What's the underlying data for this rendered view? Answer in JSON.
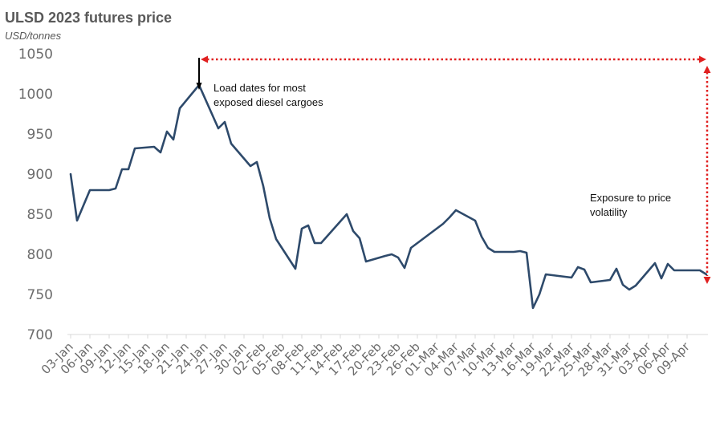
{
  "chart_data": {
    "type": "line",
    "title": "ULSD 2023 futures price",
    "ylabel": "USD/tonnes",
    "ylim": [
      700,
      1050
    ],
    "yticks": [
      700,
      750,
      800,
      850,
      900,
      950,
      1000,
      1050
    ],
    "x_tick_labels": [
      "03-Jan",
      "06-Jan",
      "09-Jan",
      "12-Jan",
      "15-Jan",
      "18-Jan",
      "21-Jan",
      "24-Jan",
      "27-Jan",
      "30-Jan",
      "02-Feb",
      "05-Feb",
      "08-Feb",
      "11-Feb",
      "14-Feb",
      "17-Feb",
      "20-Feb",
      "23-Feb",
      "26-Feb",
      "01-Mar",
      "04-Mar",
      "07-Mar",
      "10-Mar",
      "13-Mar",
      "16-Mar",
      "19-Mar",
      "22-Mar",
      "25-Mar",
      "28-Mar",
      "31-Mar",
      "03-Apr",
      "06-Apr",
      "09-Apr"
    ],
    "series": [
      {
        "color": "#2e4a6b",
        "points": [
          [
            "2023-01-03",
            900
          ],
          [
            "2023-01-04",
            842
          ],
          [
            "2023-01-06",
            880
          ],
          [
            "2023-01-09",
            880
          ],
          [
            "2023-01-10",
            882
          ],
          [
            "2023-01-11",
            906
          ],
          [
            "2023-01-12",
            906
          ],
          [
            "2023-01-13",
            932
          ],
          [
            "2023-01-16",
            934
          ],
          [
            "2023-01-17",
            927
          ],
          [
            "2023-01-18",
            953
          ],
          [
            "2023-01-19",
            943
          ],
          [
            "2023-01-20",
            982
          ],
          [
            "2023-01-23",
            1011
          ],
          [
            "2023-01-26",
            957
          ],
          [
            "2023-01-27",
            965
          ],
          [
            "2023-01-28",
            938
          ],
          [
            "2023-01-31",
            910
          ],
          [
            "2023-02-01",
            915
          ],
          [
            "2023-02-02",
            885
          ],
          [
            "2023-02-03",
            845
          ],
          [
            "2023-02-04",
            819
          ],
          [
            "2023-02-07",
            782
          ],
          [
            "2023-02-08",
            832
          ],
          [
            "2023-02-09",
            836
          ],
          [
            "2023-02-10",
            814
          ],
          [
            "2023-02-11",
            814
          ],
          [
            "2023-02-15",
            850
          ],
          [
            "2023-02-16",
            829
          ],
          [
            "2023-02-17",
            820
          ],
          [
            "2023-02-18",
            791
          ],
          [
            "2023-02-21",
            798
          ],
          [
            "2023-02-22",
            800
          ],
          [
            "2023-02-23",
            796
          ],
          [
            "2023-02-24",
            783
          ],
          [
            "2023-02-25",
            808
          ],
          [
            "2023-03-02",
            838
          ],
          [
            "2023-03-03",
            846
          ],
          [
            "2023-03-04",
            855
          ],
          [
            "2023-03-07",
            842
          ],
          [
            "2023-03-08",
            822
          ],
          [
            "2023-03-09",
            808
          ],
          [
            "2023-03-10",
            803
          ],
          [
            "2023-03-13",
            803
          ],
          [
            "2023-03-14",
            804
          ],
          [
            "2023-03-15",
            802
          ],
          [
            "2023-03-16",
            733
          ],
          [
            "2023-03-17",
            750
          ],
          [
            "2023-03-18",
            775
          ],
          [
            "2023-03-21",
            772
          ],
          [
            "2023-03-22",
            771
          ],
          [
            "2023-03-23",
            784
          ],
          [
            "2023-03-24",
            781
          ],
          [
            "2023-03-25",
            765
          ],
          [
            "2023-03-28",
            768
          ],
          [
            "2023-03-29",
            782
          ],
          [
            "2023-03-30",
            762
          ],
          [
            "2023-03-31",
            756
          ],
          [
            "2023-04-01",
            761
          ],
          [
            "2023-04-04",
            789
          ],
          [
            "2023-04-05",
            770
          ],
          [
            "2023-04-06",
            788
          ],
          [
            "2023-04-07",
            780
          ],
          [
            "2023-04-11",
            780
          ],
          [
            "2023-04-12",
            775
          ]
        ]
      }
    ],
    "annotations": [
      {
        "text_lines": [
          "Load dates for most",
          "exposed diesel cargoes"
        ]
      },
      {
        "text_lines": [
          "Exposure to price",
          "volatility"
        ]
      }
    ],
    "arrow_color": "#e02020",
    "grid": false,
    "legend": "none"
  }
}
